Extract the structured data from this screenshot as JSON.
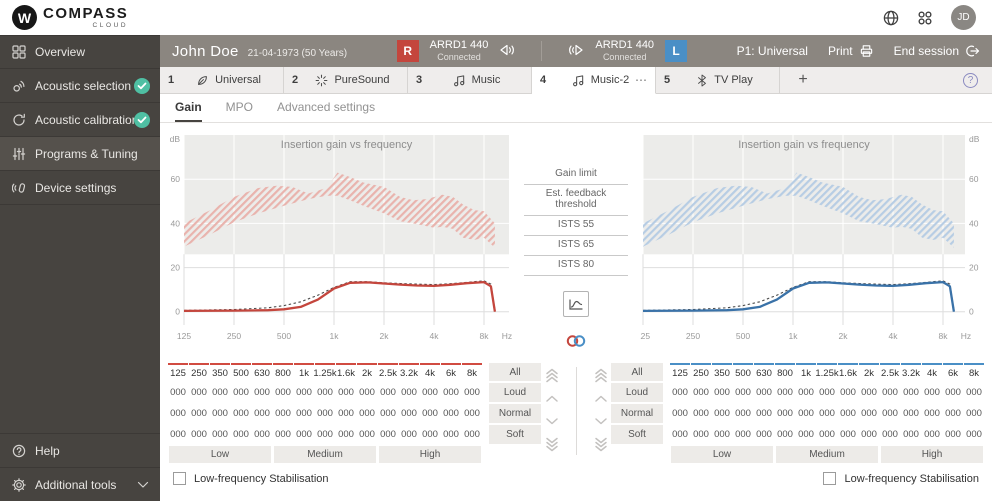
{
  "app": {
    "logo_monogram": "W",
    "logo_primary": "COMPASS",
    "logo_secondary": "CLOUD",
    "avatar_initials": "JD"
  },
  "sidebar": {
    "items": [
      {
        "label": "Overview",
        "icon": "overview-icon",
        "checked": false,
        "active": false
      },
      {
        "label": "Acoustic selection",
        "icon": "acoustic-selection-icon",
        "checked": true,
        "active": false
      },
      {
        "label": "Acoustic calibration",
        "icon": "acoustic-calibration-icon",
        "checked": true,
        "active": false
      },
      {
        "label": "Programs & Tuning",
        "icon": "programs-tuning-icon",
        "checked": false,
        "active": true
      },
      {
        "label": "Device settings",
        "icon": "device-settings-icon",
        "checked": false,
        "active": false
      }
    ],
    "bottom_items": [
      {
        "label": "Help",
        "icon": "help-icon",
        "chevron": false
      },
      {
        "label": "Additional tools",
        "icon": "gear-icon",
        "chevron": true
      }
    ]
  },
  "header": {
    "patient_name": "John Doe",
    "patient_dob": "21-04-1973 (50 Years)",
    "right_device": {
      "badge": "R",
      "model": "ARRD1 440",
      "status": "Connected",
      "color": "#c4463d"
    },
    "left_device": {
      "badge": "L",
      "model": "ARRD1 440",
      "status": "Connected",
      "color": "#4a8fc6"
    },
    "program_label": "P1: Universal",
    "print_label": "Print",
    "end_session_label": "End session"
  },
  "tabs": {
    "items": [
      {
        "number": "1",
        "icon": "universal-icon",
        "label": "Universal",
        "active": false,
        "more": ""
      },
      {
        "number": "2",
        "icon": "puresound-icon",
        "label": "PureSound",
        "active": false,
        "more": ""
      },
      {
        "number": "3",
        "icon": "music-icon",
        "label": "Music",
        "active": false,
        "more": ""
      },
      {
        "number": "4",
        "icon": "music-icon",
        "label": "Music-2",
        "active": true,
        "more": "⋯"
      },
      {
        "number": "5",
        "icon": "bluetooth-icon",
        "label": "TV Play",
        "active": false,
        "more": ""
      }
    ],
    "add_label": "+",
    "help_label": "?"
  },
  "subtabs": {
    "items": [
      {
        "label": "Gain",
        "active": true
      },
      {
        "label": "MPO",
        "active": false
      },
      {
        "label": "Advanced settings",
        "active": false
      }
    ]
  },
  "legend": {
    "items": [
      "Gain limit",
      "Est. feedback threshold",
      "ISTS 55",
      "ISTS 65",
      "ISTS 80"
    ]
  },
  "chart_data": {
    "type": "line",
    "title": "Insertion gain vs frequency",
    "x_unit": "Hz",
    "y_unit": "dB",
    "x_ticks": [
      "125",
      "250",
      "500",
      "1k",
      "2k",
      "4k",
      "8k"
    ],
    "x_tick_freqs": [
      125,
      250,
      500,
      1000,
      2000,
      4000,
      8000
    ],
    "y_ticks": [
      0,
      20,
      40,
      60
    ],
    "ylim": [
      -6,
      80
    ],
    "grid": true,
    "gain_limit_shade_above_db": 26,
    "charts": [
      {
        "id": "chart-right-ear",
        "ear": "right",
        "accent": "#c4463d",
        "band_color": "#e9b3ad",
        "label_side": "left"
      },
      {
        "id": "chart-left-ear",
        "ear": "left",
        "accent": "#3a72a8",
        "band_color": "#b7cde4",
        "label_side": "right"
      }
    ],
    "series": [
      {
        "name": "est_feedback_threshold_upper",
        "role": "band_upper",
        "x": [
          125,
          180,
          250,
          350,
          450,
          560,
          700,
          900,
          1050,
          1250,
          1500,
          2000,
          2500,
          3000,
          3600,
          4500,
          5200,
          6000,
          7000,
          8000,
          9300
        ],
        "y": [
          40,
          46,
          52,
          56,
          57,
          56.5,
          53.5,
          56,
          63,
          61,
          58.5,
          56.5,
          52,
          50.5,
          51,
          53,
          52,
          48.5,
          46,
          45.5,
          40
        ]
      },
      {
        "name": "est_feedback_threshold_lower",
        "role": "band_lower",
        "x": [
          125,
          180,
          250,
          350,
          500,
          700,
          900,
          1050,
          1250,
          1500,
          2000,
          2500,
          3000,
          4000,
          4500,
          5200,
          6000,
          7000,
          8000,
          9300
        ],
        "y": [
          29.5,
          35,
          40.5,
          44.5,
          48,
          51,
          52.5,
          52.5,
          50.5,
          48,
          44.5,
          41,
          40,
          38,
          38.5,
          37.5,
          33.5,
          32.5,
          33.5,
          29
        ]
      },
      {
        "name": "target_gain",
        "role": "target",
        "line_style": "dashed",
        "stroke": "#4b4b4b",
        "x": [
          125,
          250,
          400,
          500,
          630,
          800,
          1000,
          1250,
          1600,
          2000,
          2500,
          3150,
          4000,
          5000,
          6300,
          8000,
          8800,
          9300
        ],
        "y": [
          0.6,
          1,
          1.8,
          2.8,
          4.5,
          7.5,
          11,
          13.6,
          13.6,
          13.1,
          12.8,
          12.5,
          12.3,
          12.7,
          13.3,
          14,
          12.5,
          1
        ]
      },
      {
        "name": "insertion_gain",
        "role": "gain",
        "line_style": "solid",
        "x": [
          125,
          250,
          400,
          500,
          630,
          800,
          1000,
          1250,
          1600,
          2000,
          2500,
          3150,
          4000,
          5000,
          6300,
          8000,
          8800,
          9300
        ],
        "y": [
          0.4,
          0.5,
          0.7,
          1.1,
          2.2,
          5.5,
          10.5,
          13.1,
          13.3,
          12.8,
          12.3,
          11.9,
          11.7,
          12.2,
          12.9,
          13.4,
          11.5,
          0
        ]
      }
    ]
  },
  "gain_tables": {
    "adjuster_steps": [
      "fast-increase-icon",
      "increase-icon",
      "decrease-icon",
      "fast-decrease-icon"
    ],
    "left": {
      "ear": "right",
      "accent": "#d14b41",
      "buttons_side": "right",
      "columns": [
        "125",
        "250",
        "350",
        "500",
        "630",
        "800",
        "1k",
        "1.25k",
        "1.6k",
        "2k",
        "2.5k",
        "3.2k",
        "4k",
        "6k",
        "8k"
      ],
      "all_button": "All",
      "rows": [
        {
          "button": "Loud",
          "values": [
            "000",
            "000",
            "000",
            "000",
            "000",
            "000",
            "000",
            "000",
            "000",
            "000",
            "000",
            "000",
            "000",
            "000",
            "000"
          ]
        },
        {
          "button": "Normal",
          "values": [
            "000",
            "000",
            "000",
            "000",
            "000",
            "000",
            "000",
            "000",
            "000",
            "000",
            "000",
            "000",
            "000",
            "000",
            "000"
          ]
        },
        {
          "button": "Soft",
          "values": [
            "000",
            "000",
            "000",
            "000",
            "000",
            "000",
            "000",
            "000",
            "000",
            "000",
            "000",
            "000",
            "000",
            "000",
            "000"
          ]
        }
      ],
      "bands": [
        "Low",
        "Medium",
        "High"
      ]
    },
    "right": {
      "ear": "left",
      "accent": "#4a8fc6",
      "buttons_side": "left",
      "columns": [
        "125",
        "250",
        "350",
        "500",
        "630",
        "800",
        "1k",
        "1.25k",
        "1.6k",
        "2k",
        "2.5k",
        "3.2k",
        "4k",
        "6k",
        "8k"
      ],
      "all_button": "All",
      "rows": [
        {
          "button": "Loud",
          "values": [
            "000",
            "000",
            "000",
            "000",
            "000",
            "000",
            "000",
            "000",
            "000",
            "000",
            "000",
            "000",
            "000",
            "000",
            "000"
          ]
        },
        {
          "button": "Normal",
          "values": [
            "000",
            "000",
            "000",
            "000",
            "000",
            "000",
            "000",
            "000",
            "000",
            "000",
            "000",
            "000",
            "000",
            "000",
            "000"
          ]
        },
        {
          "button": "Soft",
          "values": [
            "000",
            "000",
            "000",
            "000",
            "000",
            "000",
            "000",
            "000",
            "000",
            "000",
            "000",
            "000",
            "000",
            "000",
            "000"
          ]
        }
      ],
      "bands": [
        "Low",
        "Medium",
        "High"
      ]
    }
  },
  "footer": {
    "left_checkbox": "Low-frequency Stabilisation",
    "right_checkbox": "Low-frequency Stabilisation"
  }
}
